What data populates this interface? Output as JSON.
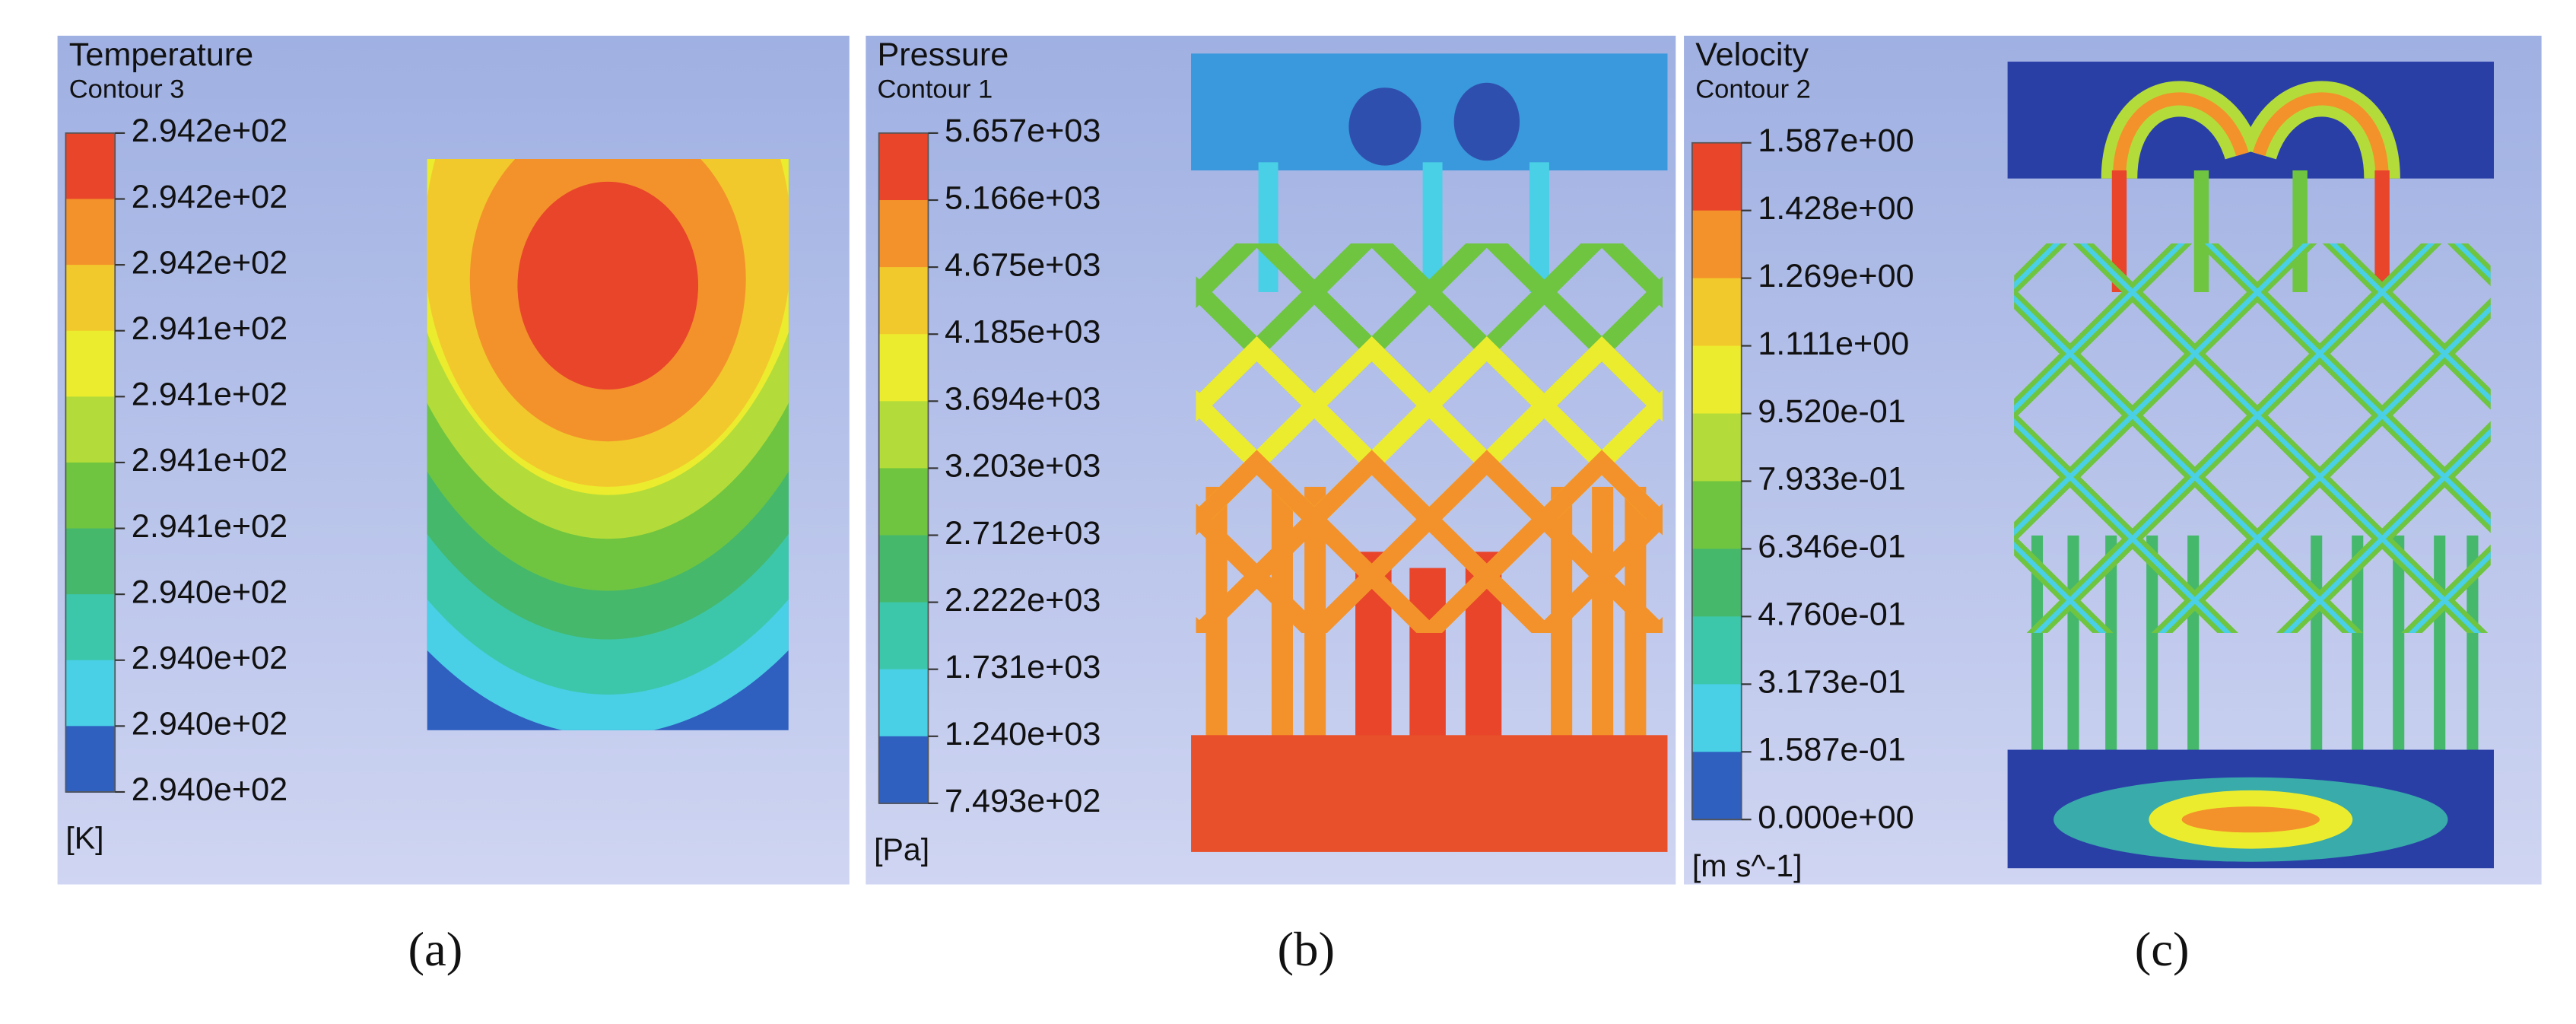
{
  "panels": [
    {
      "title": "Temperature",
      "subtitle": "Contour 3",
      "unit": "[K]",
      "caption": "(a)",
      "legend_labels": [
        "2.942e+02",
        "2.942e+02",
        "2.942e+02",
        "2.941e+02",
        "2.941e+02",
        "2.941e+02",
        "2.941e+02",
        "2.940e+02",
        "2.940e+02",
        "2.940e+02",
        "2.940e+02"
      ]
    },
    {
      "title": "Pressure",
      "subtitle": "Contour 1",
      "unit": "[Pa]",
      "caption": "(b)",
      "legend_labels": [
        "5.657e+03",
        "5.166e+03",
        "4.675e+03",
        "4.185e+03",
        "3.694e+03",
        "3.203e+03",
        "2.712e+03",
        "2.222e+03",
        "1.731e+03",
        "1.240e+03",
        "7.493e+02"
      ]
    },
    {
      "title": "Velocity",
      "subtitle": "Contour 2",
      "unit": "[m s^-1]",
      "caption": "(c)",
      "legend_labels": [
        "1.587e+00",
        "1.428e+00",
        "1.269e+00",
        "1.111e+00",
        "9.520e-01",
        "7.933e-01",
        "6.346e-01",
        "4.760e-01",
        "3.173e-01",
        "1.587e-01",
        "0.000e+00"
      ]
    }
  ]
}
